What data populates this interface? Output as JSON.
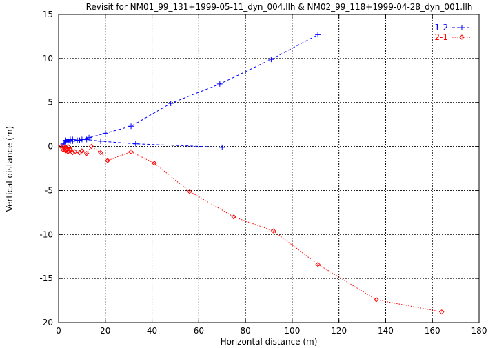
{
  "chart_data": {
    "type": "scatter",
    "title": "Revisit for NM01_99_131+1999-05-11_dyn_004.llh & NM02_99_118+1999-04-28_dyn_001.llh",
    "xlabel": "Horizontal distance (m)",
    "ylabel": "Vertical distance (m)",
    "xlim": [
      0,
      180
    ],
    "ylim": [
      -20,
      15
    ],
    "xticks": [
      0,
      20,
      40,
      60,
      80,
      100,
      120,
      140,
      160,
      180
    ],
    "yticks": [
      -20,
      -15,
      -10,
      -5,
      0,
      5,
      10,
      15
    ],
    "grid": true,
    "legend_position": "top-right",
    "series": [
      {
        "name": "1-2",
        "color": "#0000ff",
        "marker": "plus",
        "line": "dashed",
        "x": [
          70,
          33,
          18,
          12,
          9,
          6,
          5,
          4,
          3,
          2,
          3,
          4,
          3,
          2,
          3,
          5,
          4,
          5,
          6,
          8,
          10,
          13,
          20,
          31,
          48,
          69,
          91,
          111
        ],
        "y": [
          -0.1,
          0.3,
          0.6,
          0.8,
          0.7,
          0.8,
          0.6,
          0.8,
          0.7,
          0.3,
          0.7,
          0.5,
          0.6,
          0.2,
          0.6,
          0.8,
          0.5,
          0.7,
          0.6,
          0.7,
          0.8,
          1.0,
          1.5,
          2.3,
          4.9,
          7.1,
          9.9,
          12.7
        ]
      },
      {
        "name": "2-1",
        "color": "#ff0000",
        "marker": "diamond",
        "line": "dotted",
        "x": [
          1,
          2,
          3,
          3,
          4,
          5,
          4,
          3,
          2,
          4,
          5,
          6,
          7,
          9,
          10,
          12,
          14,
          18,
          21,
          31,
          41,
          56,
          75,
          92,
          111,
          136,
          164
        ],
        "y": [
          0,
          0,
          -0.1,
          -0.3,
          -0.6,
          -0.3,
          -0.6,
          -0.5,
          -0.4,
          0,
          -0.4,
          -0.7,
          -0.6,
          -0.7,
          -0.5,
          -0.8,
          0,
          -0.7,
          -1.6,
          -0.6,
          -1.9,
          -5.1,
          -8.0,
          -9.6,
          -13.4,
          -17.4,
          -18.8
        ]
      }
    ]
  }
}
